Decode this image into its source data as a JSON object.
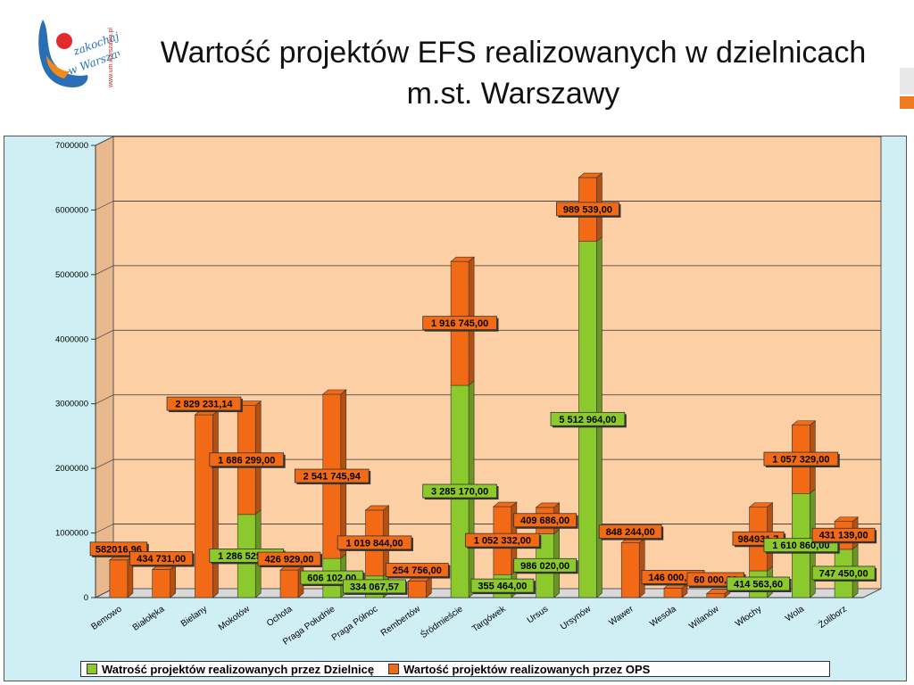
{
  "slide": {
    "title": "Wartość projektów EFS realizowanych w dzielnicach m.st. Warszawy",
    "logo_text": "zakochaj się w Warszawie",
    "logo_url_text": "www.um.warszawa.pl"
  },
  "colors": {
    "dzielnica": "#8cc92c",
    "ops": "#f26a15",
    "plot_bg": "#fcd0a4",
    "frame_bg": "#cfeff5"
  },
  "chart_data": {
    "type": "bar",
    "stacked": true,
    "title": "",
    "xlabel": "",
    "ylabel": "",
    "ylim": [
      0,
      7000000
    ],
    "yticks": [
      "0",
      "1000000",
      "2000000",
      "3000000",
      "4000000",
      "5000000",
      "6000000",
      "7000000"
    ],
    "grid": true,
    "legend_position": "bottom",
    "categories": [
      "Bemowo",
      "Białołęka",
      "Bielany",
      "Mokotów",
      "Ochota",
      "Praga Południe",
      "Praga Północ",
      "Rembertów",
      "Śródmieście",
      "Targówek",
      "Ursus",
      "Ursynów",
      "Wawer",
      "Wesoła",
      "Wilanów",
      "Włochy",
      "Wola",
      "Żoliborz"
    ],
    "series": [
      {
        "name": "Watrość projektów realizowanych przez Dzielnicę",
        "values": [
          0,
          0,
          0,
          1286525,
          0,
          606102,
          334067.57,
          0,
          3285170,
          355464,
          986020,
          5512964,
          0,
          0,
          0,
          414563.6,
          1610860,
          747450
        ],
        "labels": [
          "",
          "",
          "",
          "1 286 525,00",
          "",
          "606 102,00",
          "334 067,57",
          "",
          "3 285 170,00",
          "355 464,00",
          "986 020,00",
          "5 512 964,00",
          "",
          "",
          "",
          "414 563,60",
          "1 610 860,00",
          "747 450,00"
        ]
      },
      {
        "name": "Wartość projektów realizowanych przez OPS",
        "values": [
          582016.96,
          434731,
          2829231.14,
          1686299,
          426929,
          2541745.94,
          1019844,
          254756,
          1916745,
          1052332,
          409686,
          989539,
          848244,
          146000,
          60000,
          984931.7,
          1057329,
          431139
        ],
        "labels": [
          "582016,96",
          "434 731,00",
          "2 829 231,14",
          "1 686 299,00",
          "426 929,00",
          "2 541 745,94",
          "1 019 844,00",
          "254 756,00",
          "1 916 745,00",
          "1 052 332,00",
          "409 686,00",
          "989 539,00",
          "848 244,00",
          "146 000,00",
          "60 000,00",
          "984931,7",
          "1 057 329,00",
          "431 139,00"
        ]
      }
    ]
  }
}
